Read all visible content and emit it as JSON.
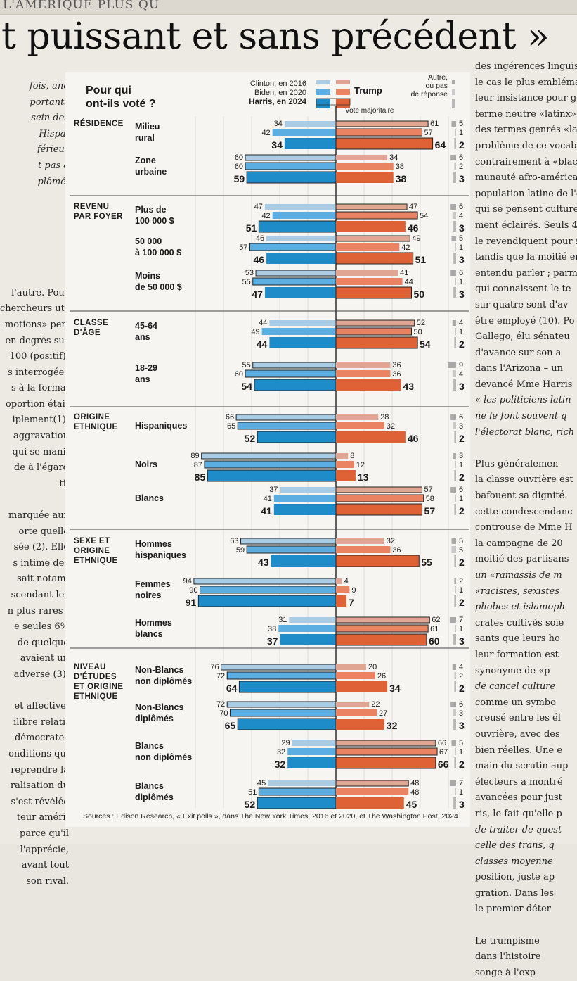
{
  "page": {
    "kicker": "L'AMÉRIQUE PLUS QU",
    "headline": "t puissant et sans précédent »",
    "left_column": [
      "fois, une",
      "portants",
      "sein des",
      "Hispa-",
      "férieur",
      "t pas à",
      "plômé.",
      "",
      "",
      "",
      "",
      "",
      "",
      "l'autre. Pour",
      "chercheurs uti-",
      "motions» per-",
      "en degrés sur",
      "100 (positif).",
      "s interrogées",
      "s à la forma-",
      "oportion était",
      "iplement(1).",
      "aggravation",
      "qui se mani-",
      "de à l'égard",
      "ti.",
      "",
      "marquée aux",
      "orte quelle",
      "sée (2). Elle",
      "s intime des",
      "sait notam-",
      "scendant les",
      "n plus rares :",
      "e seules 6%",
      "de quelque",
      "avaient un",
      "adverse (3).",
      "",
      "et affective,",
      "ilibre relatif",
      "démocrates",
      "onditions qui",
      "reprendre la",
      "ralisation du",
      "s'est révélée",
      "teur améri-",
      "parce qu'il",
      "l'apprécie,",
      "avant tout",
      "son rival."
    ],
    "left_italic_lines": 7,
    "right_column": [
      "des ingérences linguisti",
      "le cas le plus emblémati",
      "leur insistance pour gén",
      "terme neutre «latinx»",
      "des termes genrés «latin",
      "problème de ce vocabu",
      "contrairement à «black",
      "munauté afro-américai",
      "population latine de l'e",
      "qui se pensent culture",
      "ment éclairés. Seuls 4",
      "le revendiquent pour s",
      "tandis que la moitié en",
      "entendu parler ; parmi",
      "qui connaissent le te",
      "sur quatre sont d'av",
      "être employé (10). Po",
      "Gallego, élu sénateu",
      "d'avance sur son a",
      "dans l'Arizona – un",
      "devancé Mme Harris",
      "« les politiciens latin",
      "ne le font souvent q",
      "l'électorat blanc, rich",
      "",
      "Plus généralemen",
      "la classe ouvrière est",
      "bafouent sa dignité.",
      "cette condescendanc",
      "controuse de Mme H",
      "la campagne de 20",
      "moitié des partisans",
      "un «ramassis de m",
      "«racistes, sexistes",
      "phobes et islamoph",
      "crates cultivés soie",
      "sants que leurs ho",
      "leur formation est",
      "synonyme de «p",
      "de cancel culture",
      "comme un symbo",
      "creusé entre les él",
      "ouvrière, avec des",
      "bien réelles. Une e",
      "main du scrutin aup",
      "électeurs a montré",
      "avancées pour just",
      "ris, le fait qu'elle p",
      "de traiter de quest",
      "celle des trans, q",
      "classes moyenne",
      "position, juste ap",
      "gration. Dans les",
      "le premier déter",
      "",
      "Le trumpisme",
      "dans l'histoire",
      "songe à l'exp"
    ],
    "right_italic_lines": [
      21,
      22,
      23,
      32,
      33,
      34,
      39,
      48,
      49,
      50
    ]
  },
  "colors": {
    "dem_2016": "#a9cbe4",
    "dem_2020": "#5aaee2",
    "dem_2024": "#1e8cc9",
    "rep_2016": "#e0a593",
    "rep_2020": "#ea8362",
    "rep_2024": "#df6236",
    "other_2016": "#a9a9a9",
    "other_2020": "#c8c8c8",
    "other_2024": "#b7b7b7"
  },
  "chart_data": {
    "type": "bar",
    "title": "Pour qui ont-ils voté ?",
    "title_lines": [
      "Pour qui",
      "ont-ils voté ?"
    ],
    "legend": {
      "dem_lines": [
        "Clinton, en 2016",
        "Biden, en 2020",
        "Harris, en 2024"
      ],
      "rep_label": "Trump",
      "other_lines": [
        "Autre,",
        "ou pas",
        "de réponse"
      ],
      "majority_label": "Vote majoritaire"
    },
    "years": [
      2016,
      2020,
      2024
    ],
    "series": [
      {
        "name": "Clinton, en 2016 / Biden, en 2020 / Harris, en 2024",
        "party": "dem"
      },
      {
        "name": "Trump",
        "party": "rep"
      },
      {
        "name": "Autre, ou pas de réponse",
        "party": "other"
      }
    ],
    "groups": [
      {
        "label": [
          "RÉSIDENCE"
        ],
        "rows": [
          {
            "label": [
              "Milieu",
              "rural"
            ],
            "dem": [
              34,
              42,
              34
            ],
            "rep": [
              61,
              57,
              64
            ],
            "other": [
              5,
              1,
              2
            ]
          },
          {
            "label": [
              "Zone",
              "urbaine"
            ],
            "dem": [
              60,
              60,
              59
            ],
            "rep": [
              34,
              38,
              38
            ],
            "other": [
              6,
              2,
              3
            ]
          }
        ]
      },
      {
        "label": [
          "REVENU",
          "PAR FOYER"
        ],
        "rows": [
          {
            "label": [
              "Plus de",
              "100 000 $"
            ],
            "dem": [
              47,
              42,
              51
            ],
            "rep": [
              47,
              54,
              46
            ],
            "other": [
              6,
              4,
              3
            ]
          },
          {
            "label": [
              "50 000",
              "à 100 000 $"
            ],
            "dem": [
              46,
              57,
              46
            ],
            "rep": [
              49,
              42,
              51
            ],
            "other": [
              5,
              1,
              3
            ]
          },
          {
            "label": [
              "Moins",
              "de 50 000 $"
            ],
            "dem": [
              53,
              55,
              47
            ],
            "rep": [
              41,
              44,
              50
            ],
            "other": [
              6,
              1,
              3
            ]
          }
        ]
      },
      {
        "label": [
          "CLASSE",
          "D'ÂGE"
        ],
        "rows": [
          {
            "label": [
              "45-64",
              "ans"
            ],
            "dem": [
              44,
              49,
              44
            ],
            "rep": [
              52,
              50,
              54
            ],
            "other": [
              4,
              1,
              2
            ]
          },
          {
            "label": [
              "18-29",
              "ans"
            ],
            "dem": [
              55,
              60,
              54
            ],
            "rep": [
              36,
              36,
              43
            ],
            "other": [
              9,
              4,
              3
            ]
          }
        ]
      },
      {
        "label": [
          "ORIGINE",
          "ETHNIQUE"
        ],
        "rows": [
          {
            "label": [
              "Hispaniques"
            ],
            "dem": [
              66,
              65,
              52
            ],
            "rep": [
              28,
              32,
              46
            ],
            "other": [
              6,
              3,
              2
            ]
          },
          {
            "label": [
              "Noirs"
            ],
            "dem": [
              89,
              87,
              85
            ],
            "rep": [
              8,
              12,
              13
            ],
            "other": [
              3,
              1,
              2
            ]
          },
          {
            "label": [
              "Blancs"
            ],
            "dem": [
              37,
              41,
              41
            ],
            "rep": [
              57,
              58,
              57
            ],
            "other": [
              6,
              1,
              2
            ]
          }
        ]
      },
      {
        "label": [
          "SEXE ET",
          "ORIGINE",
          "ETHNIQUE"
        ],
        "rows": [
          {
            "label": [
              "Hommes",
              "hispaniques"
            ],
            "dem": [
              63,
              59,
              43
            ],
            "rep": [
              32,
              36,
              55
            ],
            "other": [
              5,
              5,
              2
            ]
          },
          {
            "label": [
              "Femmes",
              "noires"
            ],
            "dem": [
              94,
              90,
              91
            ],
            "rep": [
              4,
              9,
              7
            ],
            "other": [
              2,
              1,
              2
            ]
          },
          {
            "label": [
              "Hommes",
              "blancs"
            ],
            "dem": [
              31,
              38,
              37
            ],
            "rep": [
              62,
              61,
              60
            ],
            "other": [
              7,
              1,
              3
            ]
          }
        ]
      },
      {
        "label": [
          "NIVEAU",
          "D'ÉTUDES",
          "ET ORIGINE",
          "ETHNIQUE"
        ],
        "rows": [
          {
            "label": [
              "Non-Blancs",
              "non diplômés"
            ],
            "dem": [
              76,
              72,
              64
            ],
            "rep": [
              20,
              26,
              34
            ],
            "other": [
              4,
              2,
              2
            ]
          },
          {
            "label": [
              "Non-Blancs",
              "diplômés"
            ],
            "dem": [
              72,
              70,
              65
            ],
            "rep": [
              22,
              27,
              32
            ],
            "other": [
              6,
              3,
              3
            ]
          },
          {
            "label": [
              "Blancs",
              "non diplômés"
            ],
            "dem": [
              29,
              32,
              32
            ],
            "rep": [
              66,
              67,
              66
            ],
            "other": [
              5,
              1,
              2
            ]
          },
          {
            "label": [
              "Blancs",
              "diplômés"
            ],
            "dem": [
              45,
              51,
              52
            ],
            "rep": [
              48,
              48,
              45
            ],
            "other": [
              7,
              1,
              3
            ]
          }
        ]
      }
    ],
    "source": "Sources : Edison Research, « Exit polls », dans The New York Times, 2016 et 2020, et The Washington Post, 2024."
  }
}
